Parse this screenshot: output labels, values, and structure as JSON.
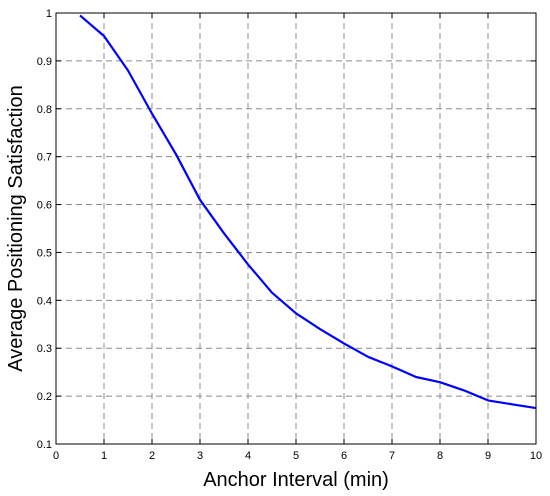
{
  "chart_data": {
    "type": "line",
    "title": "",
    "xlabel": "Anchor Interval (min)",
    "ylabel": "Average Positioning Satisfaction",
    "xlim": [
      0,
      10
    ],
    "ylim": [
      0.1,
      1
    ],
    "xticks": [
      "0",
      "1",
      "2",
      "3",
      "4",
      "5",
      "6",
      "7",
      "8",
      "9",
      "10"
    ],
    "yticks": [
      "0.1",
      "0.2",
      "0.3",
      "0.4",
      "0.5",
      "0.6",
      "0.7",
      "0.8",
      "0.9",
      "1"
    ],
    "grid": true,
    "series": [
      {
        "color": "#0000ff",
        "x": [
          0.5,
          1,
          1.5,
          2,
          2.5,
          3,
          3.5,
          4,
          4.5,
          5,
          5.5,
          6,
          6.5,
          7,
          7.5,
          8,
          8.5,
          9,
          9.5,
          10
        ],
        "y": [
          0.995,
          0.952,
          0.88,
          0.79,
          0.705,
          0.61,
          0.54,
          0.475,
          0.416,
          0.373,
          0.34,
          0.31,
          0.282,
          0.262,
          0.24,
          0.229,
          0.212,
          0.191,
          0.183,
          0.175
        ]
      }
    ]
  }
}
